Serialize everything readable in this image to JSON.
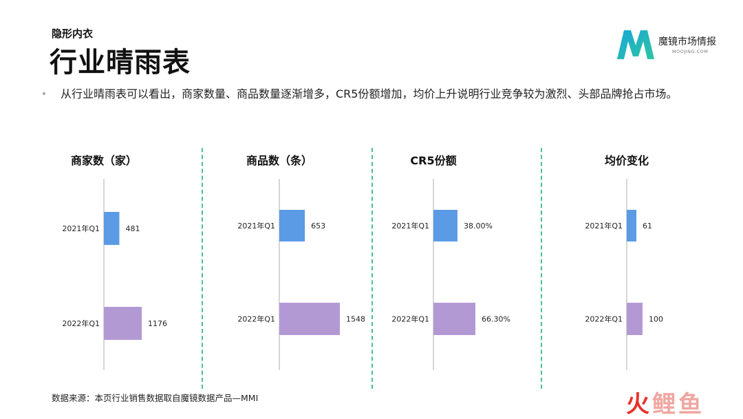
{
  "header": {
    "subtitle": "隐形内衣",
    "title": "行业晴雨表"
  },
  "logo": {
    "name": "魔镜市场情报",
    "sub": "MOOJING.COM"
  },
  "bullet": "从行业晴雨表可以看出，商家数量、商品数量逐渐增多，CR5份额增加，均价上升说明行业竞争较为激烈、头部品牌抢占市场。",
  "colors": {
    "q2021": "#5b9be6",
    "q2022": "#b399d4",
    "divider": "#42c28e",
    "axis": "#c8c8c8"
  },
  "chart_data": [
    {
      "type": "bar",
      "title": "商家数（家）",
      "categories": [
        "2021年Q1",
        "2022年Q1"
      ],
      "values": [
        481,
        1176
      ],
      "labels": [
        "481",
        "1176"
      ]
    },
    {
      "type": "bar",
      "title": "商品数（条）",
      "categories": [
        "2021年Q1",
        "2022年Q1"
      ],
      "values": [
        653,
        1548
      ],
      "labels": [
        "653",
        "1548"
      ]
    },
    {
      "type": "bar",
      "title": "CR5份额",
      "categories": [
        "2021年Q1",
        "2022年Q1"
      ],
      "values": [
        38.0,
        66.3
      ],
      "labels": [
        "38.00%",
        "66.30%"
      ]
    },
    {
      "type": "bar",
      "title": "均价变化",
      "categories": [
        "2021年Q1",
        "2022年Q1"
      ],
      "values": [
        61,
        100
      ],
      "labels": [
        "61",
        "100"
      ]
    }
  ],
  "footer": {
    "source": "数据来源：本页行业销售数据取自魔镜数据产品—MMI",
    "watermark_a": "火",
    "watermark_b": "鲤鱼"
  }
}
